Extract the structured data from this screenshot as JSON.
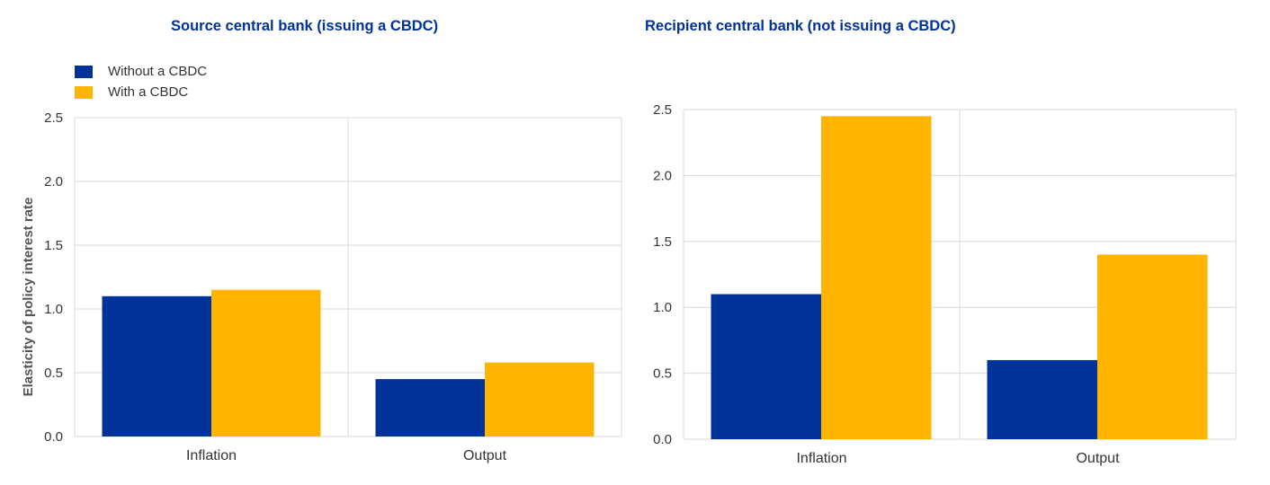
{
  "colors": {
    "without": "#003299",
    "with": "#FFB400",
    "grid": "#d9d9d9",
    "title": "#003299"
  },
  "legend": [
    {
      "label": "Without a CBDC",
      "color": "#003299"
    },
    {
      "label": "With a CBDC",
      "color": "#FFB400"
    }
  ],
  "chart_data": [
    {
      "type": "bar",
      "title": "Source central bank (issuing a CBDC)",
      "ylabel": "Elasticity of policy interest rate",
      "categories": [
        "Inflation",
        "Output"
      ],
      "series": [
        {
          "name": "Without a CBDC",
          "values": [
            1.1,
            0.45
          ]
        },
        {
          "name": "With a CBDC",
          "values": [
            1.15,
            0.58
          ]
        }
      ],
      "ylim": [
        0,
        2.5
      ],
      "yticks": [
        "0.0",
        "0.5",
        "1.0",
        "1.5",
        "2.0",
        "2.5"
      ],
      "grid": true,
      "legend_position": "top-left"
    },
    {
      "type": "bar",
      "title": "Recipient central bank (not issuing a CBDC)",
      "ylabel": "",
      "categories": [
        "Inflation",
        "Output"
      ],
      "series": [
        {
          "name": "Without a CBDC",
          "values": [
            1.1,
            0.6
          ]
        },
        {
          "name": "With a CBDC",
          "values": [
            2.45,
            1.4
          ]
        }
      ],
      "ylim": [
        0,
        2.5
      ],
      "yticks": [
        "0.0",
        "0.5",
        "1.0",
        "1.5",
        "2.0",
        "2.5"
      ],
      "grid": true
    }
  ]
}
